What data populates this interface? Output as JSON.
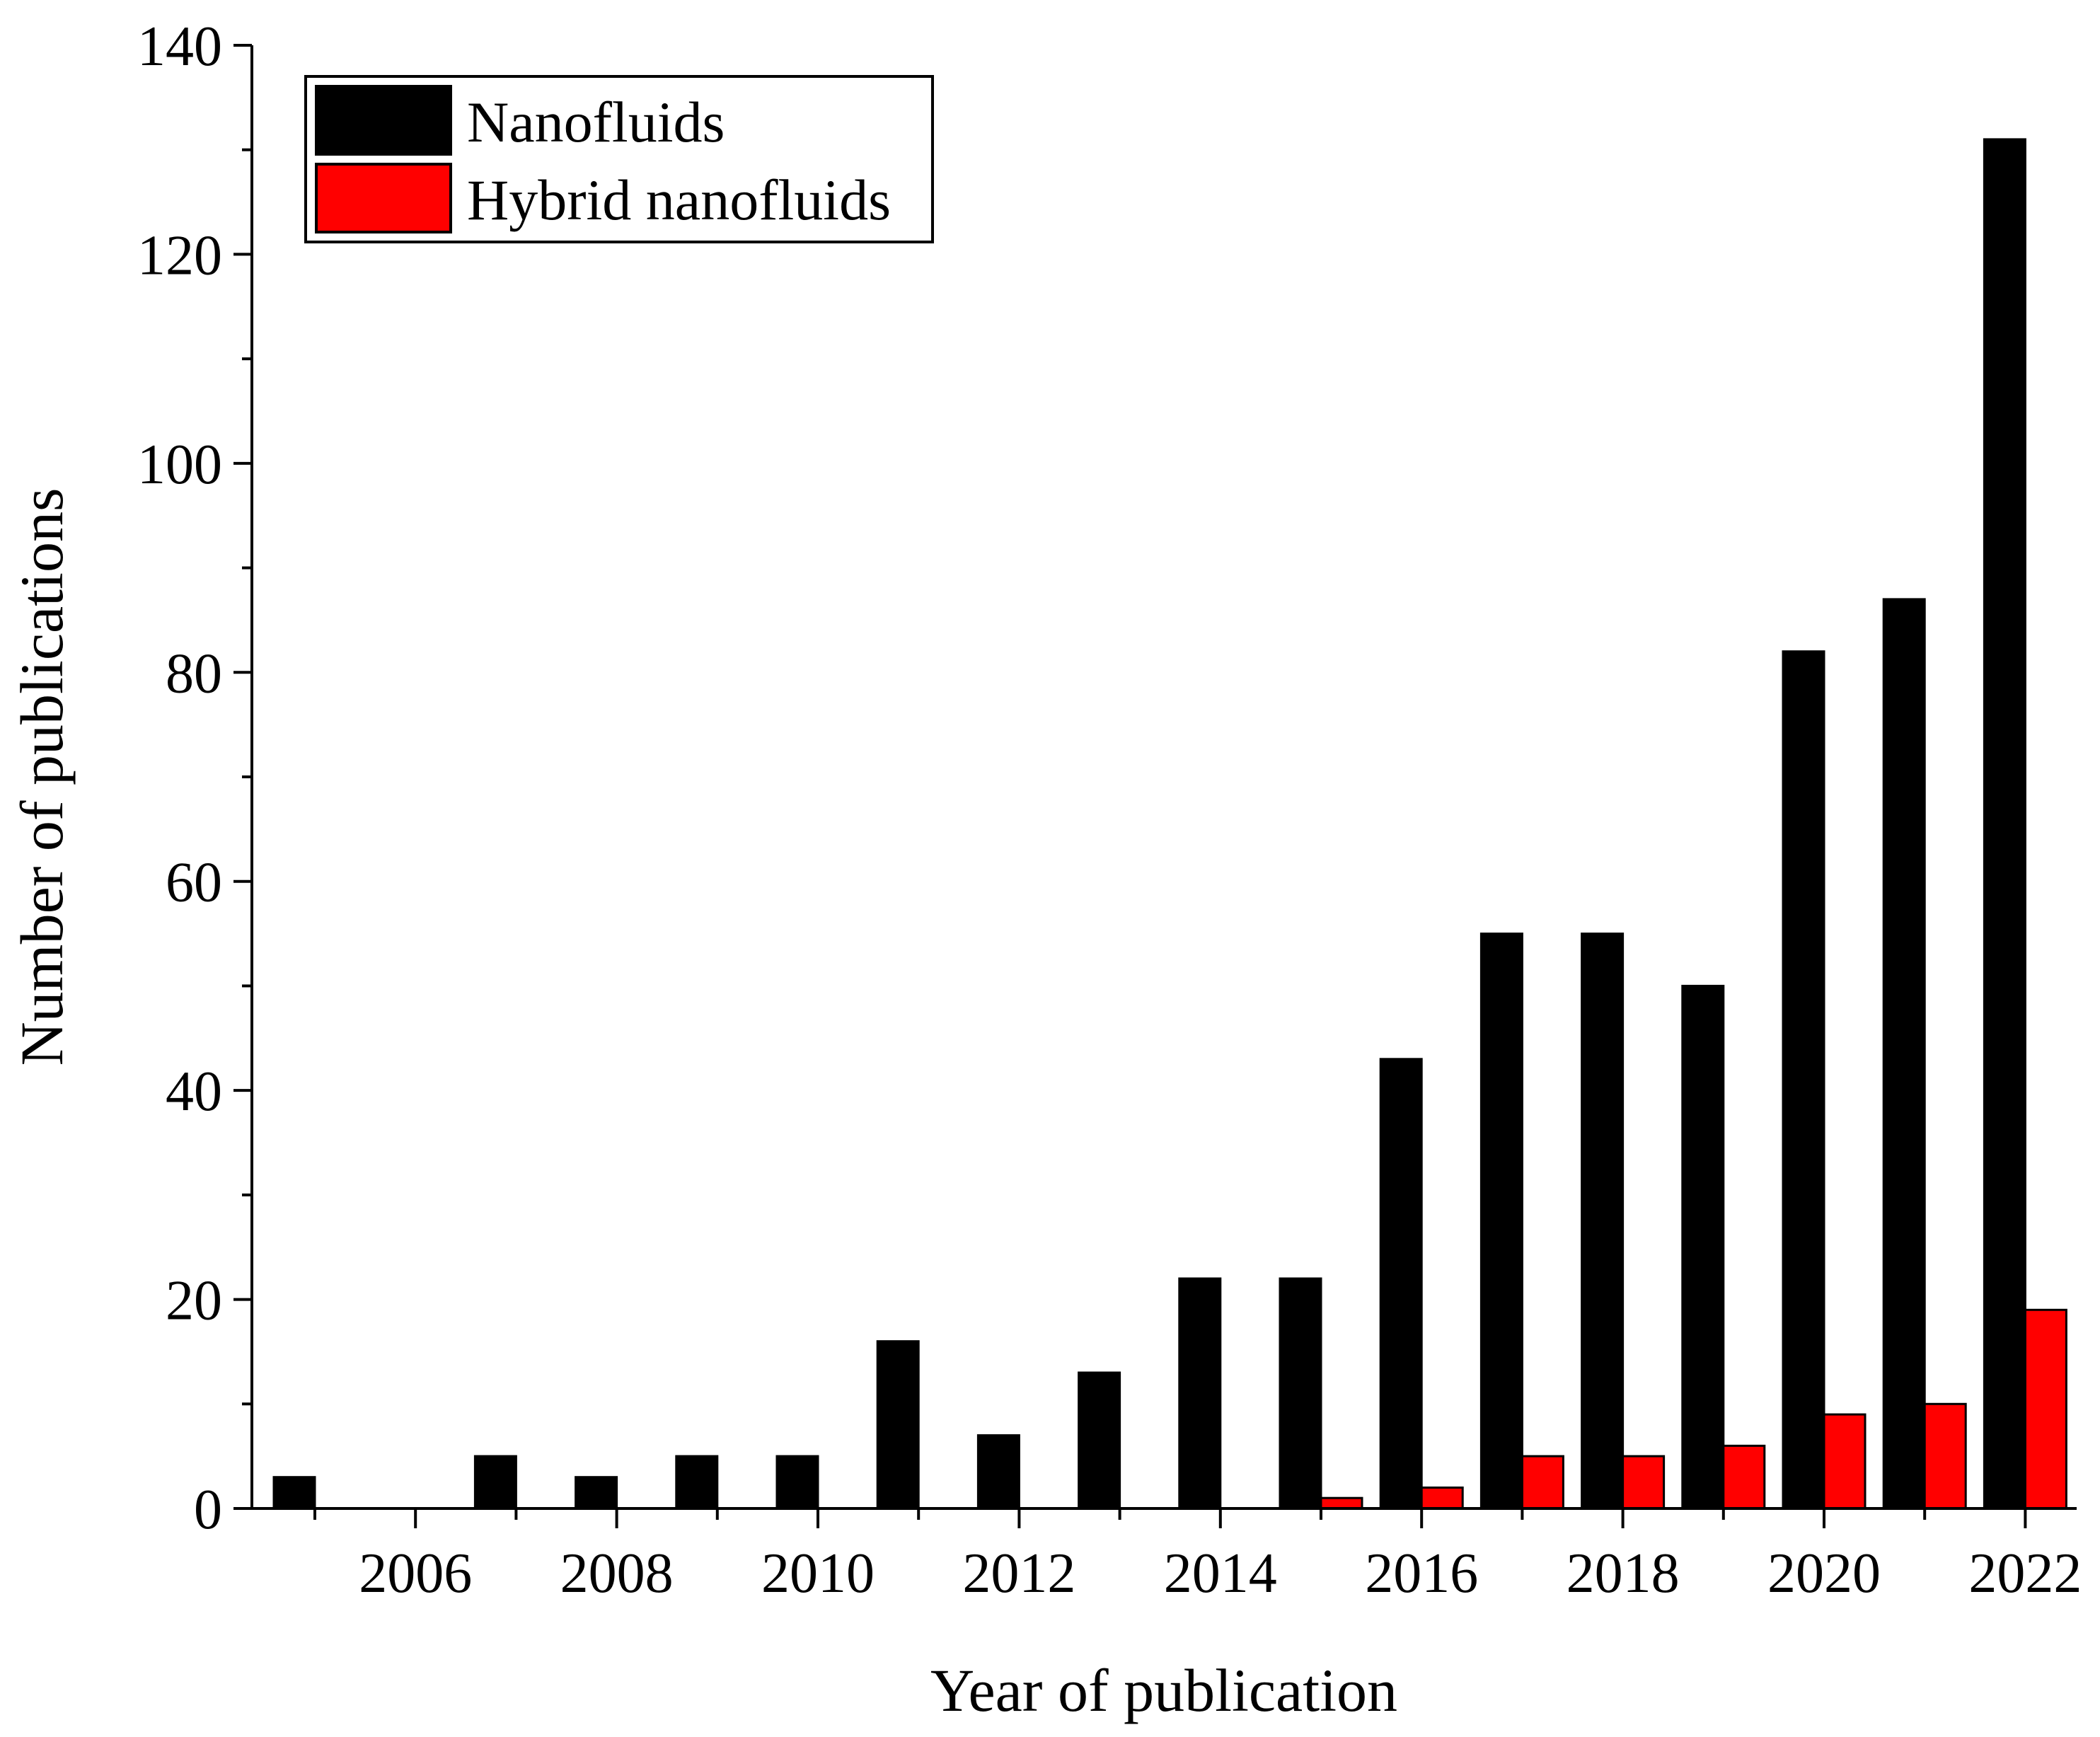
{
  "chart_data": {
    "type": "bar",
    "title": "",
    "xlabel": "Year of publication",
    "ylabel": "Number of publications",
    "categories": [
      "2005",
      "2006",
      "2007",
      "2008",
      "2009",
      "2010",
      "2011",
      "2012",
      "2013",
      "2014",
      "2015",
      "2016",
      "2017",
      "2018",
      "2019",
      "2020",
      "2021",
      "2022"
    ],
    "xtick_labels": [
      "2006",
      "2008",
      "2010",
      "2012",
      "2014",
      "2016",
      "2018",
      "2020",
      "2022"
    ],
    "ylim": [
      0,
      140
    ],
    "yticks": [
      0,
      20,
      40,
      60,
      80,
      100,
      120,
      140
    ],
    "ytick_labels": [
      "0",
      "20",
      "40",
      "60",
      "80",
      "100",
      "120",
      "140"
    ],
    "grid": false,
    "legend_position": "top-left",
    "series": [
      {
        "name": "Nanofluids",
        "color": "#000000",
        "values": [
          3,
          0,
          5,
          3,
          5,
          5,
          16,
          7,
          13,
          22,
          22,
          43,
          55,
          55,
          50,
          82,
          87,
          131
        ]
      },
      {
        "name": "Hybrid nanofluids",
        "color": "#ff0000",
        "values": [
          0,
          0,
          0,
          0,
          0,
          0,
          0,
          0,
          0,
          0,
          1,
          2,
          5,
          5,
          6,
          9,
          10,
          19
        ]
      }
    ]
  }
}
